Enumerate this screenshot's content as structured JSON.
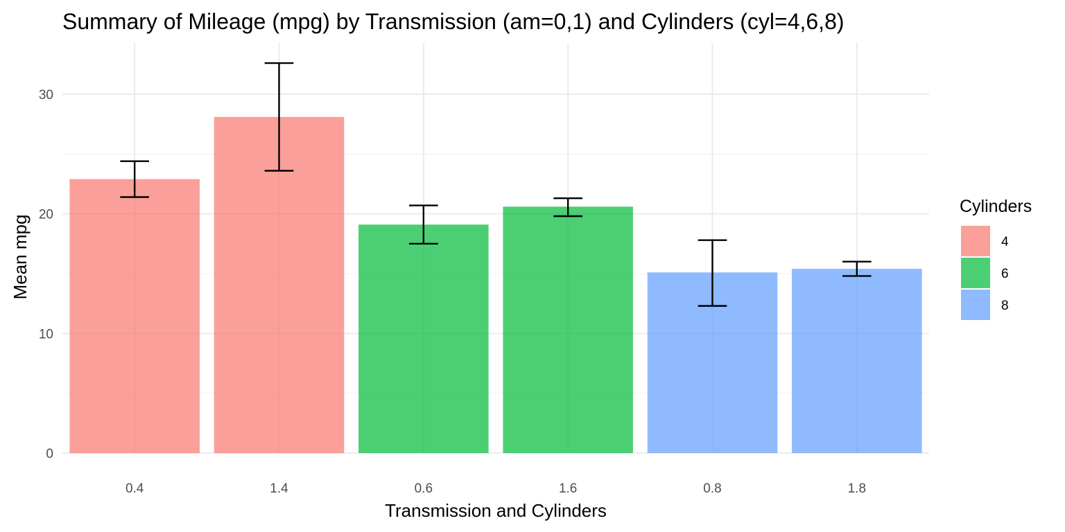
{
  "chart_data": {
    "type": "bar",
    "title": "Summary of Mileage (mpg) by Transmission (am=0,1) and Cylinders (cyl=4,6,8)",
    "xlabel": "Transmission and Cylinders",
    "ylabel": "Mean mpg",
    "ylim": [
      0,
      33.5
    ],
    "y_ticks": [
      0,
      10,
      20,
      30
    ],
    "y_tick_labels": [
      "0",
      "10",
      "20",
      "30"
    ],
    "categories": [
      "0.4",
      "1.4",
      "0.6",
      "1.6",
      "0.8",
      "1.8"
    ],
    "bars": [
      {
        "category": "0.4",
        "group": "4",
        "value": 22.9,
        "err_low": 21.4,
        "err_high": 24.4
      },
      {
        "category": "1.4",
        "group": "4",
        "value": 28.1,
        "err_low": 23.6,
        "err_high": 32.6
      },
      {
        "category": "0.6",
        "group": "6",
        "value": 19.1,
        "err_low": 17.5,
        "err_high": 20.7
      },
      {
        "category": "1.6",
        "group": "6",
        "value": 20.6,
        "err_low": 19.8,
        "err_high": 21.3
      },
      {
        "category": "0.8",
        "group": "8",
        "value": 15.1,
        "err_low": 12.3,
        "err_high": 17.8
      },
      {
        "category": "1.8",
        "group": "8",
        "value": 15.4,
        "err_low": 14.8,
        "err_high": 16.0
      }
    ],
    "legend": {
      "title": "Cylinders",
      "placement": "right",
      "items": [
        {
          "label": "4",
          "color": "#F8766D"
        },
        {
          "label": "6",
          "color": "#00BA38"
        },
        {
          "label": "8",
          "color": "#619CFF"
        }
      ]
    },
    "bar_opacity": 0.7,
    "grid": true
  }
}
